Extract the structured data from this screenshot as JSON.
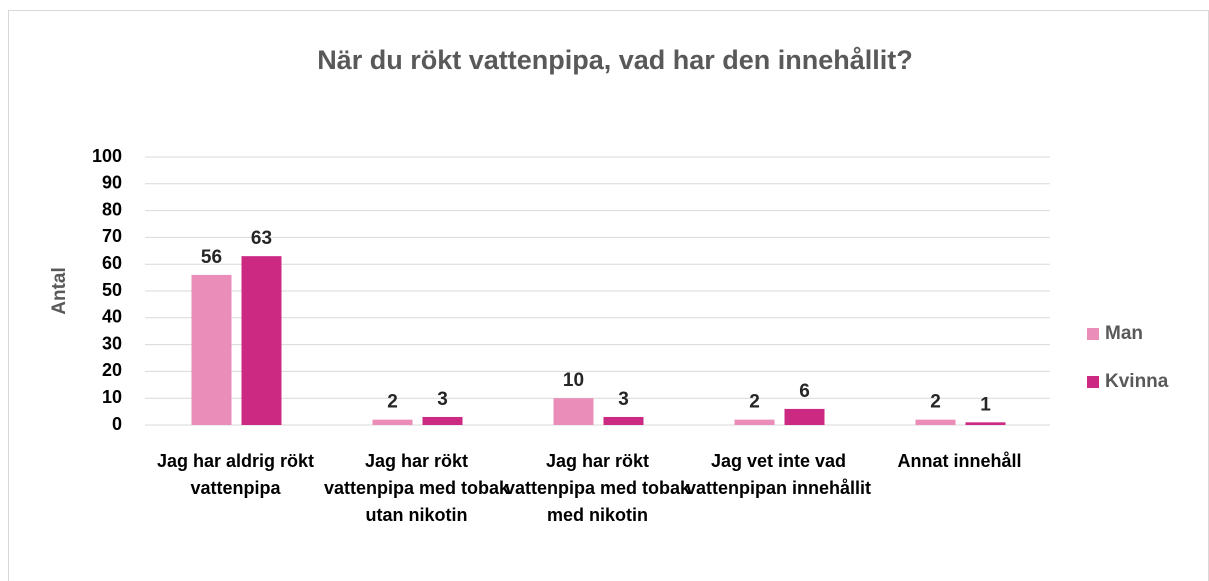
{
  "chart_data": {
    "type": "bar",
    "title": "När du rökt vattenpipa, vad har den innehållit?",
    "y_label": "Antal",
    "categories": [
      "Jag har aldrig rökt vattenpipa",
      "Jag har rökt vattenpipa med tobak utan nikotin",
      "Jag har rökt vattenpipa med tobak med nikotin",
      "Jag vet inte vad vattenpipan innehållit",
      "Annat innehåll"
    ],
    "series": [
      {
        "name": "Man",
        "color": "#ea8db8",
        "values": [
          56,
          2,
          10,
          2,
          2
        ]
      },
      {
        "name": "Kvinna",
        "color": "#cc2a82",
        "values": [
          63,
          3,
          3,
          6,
          1
        ]
      }
    ],
    "ylim": [
      0,
      100
    ],
    "yticks": [
      0,
      10,
      20,
      30,
      40,
      50,
      60,
      70,
      80,
      90,
      100
    ],
    "grid": true,
    "legend": "right"
  }
}
